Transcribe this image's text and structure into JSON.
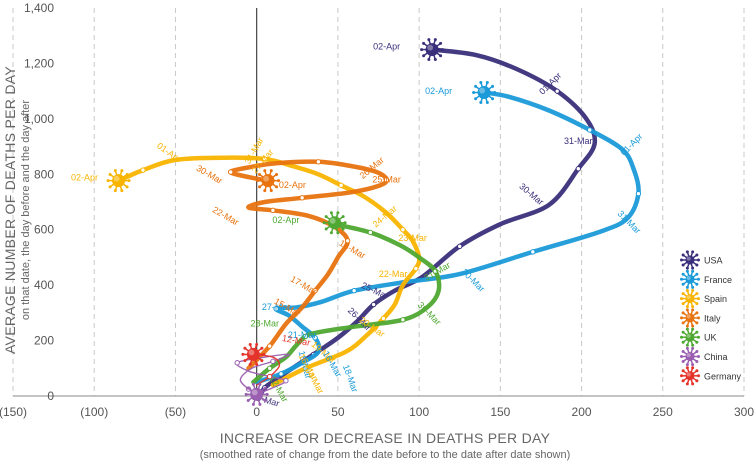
{
  "chart_data": {
    "type": "line",
    "xlabel": "INCREASE OR DECREASE IN DEATHS PER DAY",
    "xlabel_sub": "(smoothed rate of change from the date before to the date after date shown)",
    "ylabel": "AVERAGE NUMBER OF DEATHS PER DAY",
    "ylabel_sub": "on that date, the day before and the day after",
    "xlim": [
      -150,
      300
    ],
    "ylim": [
      0,
      1400
    ],
    "x_ticks": [
      {
        "v": -150,
        "label": "(150)"
      },
      {
        "v": -100,
        "label": "(100)"
      },
      {
        "v": -50,
        "label": "(50)"
      },
      {
        "v": 0,
        "label": "0"
      },
      {
        "v": 50,
        "label": "50"
      },
      {
        "v": 100,
        "label": "100"
      },
      {
        "v": 150,
        "label": "150"
      },
      {
        "v": 200,
        "label": "200"
      },
      {
        "v": 250,
        "label": "250"
      },
      {
        "v": 300,
        "label": "300"
      }
    ],
    "y_ticks": [
      {
        "v": 0,
        "label": "0"
      },
      {
        "v": 200,
        "label": "200"
      },
      {
        "v": 400,
        "label": "400"
      },
      {
        "v": 600,
        "label": "600"
      },
      {
        "v": 800,
        "label": "800"
      },
      {
        "v": 1000,
        "label": "1,000"
      },
      {
        "v": 1200,
        "label": "1,200"
      },
      {
        "v": 1400,
        "label": "1,400"
      }
    ],
    "grid": "vertical dashed",
    "legend_position": "right",
    "series": [
      {
        "name": "USA",
        "color": "#3a2f7a",
        "points": [
          [
            2,
            0
          ],
          [
            5,
            30
          ],
          [
            12,
            60
          ],
          [
            22,
            100
          ],
          [
            35,
            150
          ],
          [
            50,
            210
          ],
          [
            62,
            270
          ],
          [
            72,
            330
          ],
          [
            85,
            380
          ],
          [
            102,
            430
          ],
          [
            125,
            540
          ],
          [
            150,
            620
          ],
          [
            180,
            690
          ],
          [
            198,
            820
          ],
          [
            208,
            910
          ],
          [
            203,
            1000
          ],
          [
            185,
            1100
          ],
          [
            160,
            1180
          ],
          [
            135,
            1230
          ],
          [
            108,
            1250
          ]
        ],
        "labels": [
          {
            "text": "09-Mar",
            "x": 5,
            "y": -25,
            "angle": 15
          },
          {
            "text": "25-Mar",
            "x": 72,
            "y": 370,
            "angle": 25
          },
          {
            "text": "26-Mar",
            "x": 62,
            "y": 270,
            "angle": 45
          },
          {
            "text": "30-Mar",
            "x": 168,
            "y": 720,
            "angle": 40
          },
          {
            "text": "31-Mar",
            "x": 198,
            "y": 910,
            "angle": 0
          },
          {
            "text": "01-Apr",
            "x": 182,
            "y": 1120,
            "angle": -45
          },
          {
            "text": "02-Apr",
            "x": 80,
            "y": 1250,
            "angle": 0
          }
        ]
      },
      {
        "name": "France",
        "color": "#1a9ad8",
        "points": [
          [
            0,
            50
          ],
          [
            15,
            80
          ],
          [
            28,
            120
          ],
          [
            38,
            160
          ],
          [
            36,
            210
          ],
          [
            28,
            250
          ],
          [
            20,
            290
          ],
          [
            12,
            315
          ],
          [
            25,
            320
          ],
          [
            40,
            340
          ],
          [
            60,
            380
          ],
          [
            90,
            410
          ],
          [
            125,
            440
          ],
          [
            170,
            520
          ],
          [
            210,
            590
          ],
          [
            228,
            640
          ],
          [
            235,
            730
          ],
          [
            232,
            820
          ],
          [
            225,
            890
          ],
          [
            205,
            960
          ],
          [
            180,
            1030
          ],
          [
            155,
            1080
          ],
          [
            140,
            1095
          ]
        ],
        "labels": [
          {
            "text": "18-Mar",
            "x": 28,
            "y": 110,
            "angle": 75
          },
          {
            "text": "21-Mar",
            "x": 28,
            "y": 210,
            "angle": 0
          },
          {
            "text": "27-Mar",
            "x": 12,
            "y": 310,
            "angle": 0
          },
          {
            "text": "30-Mar",
            "x": 132,
            "y": 410,
            "angle": 45
          },
          {
            "text": "31-Mar",
            "x": 228,
            "y": 620,
            "angle": 45
          },
          {
            "text": "01-Apr",
            "x": 232,
            "y": 900,
            "angle": -45
          },
          {
            "text": "02-Apr",
            "x": 112,
            "y": 1090,
            "angle": 0
          }
        ]
      },
      {
        "name": "Spain",
        "color": "#f8b400",
        "points": [
          [
            10,
            40
          ],
          [
            30,
            100
          ],
          [
            55,
            160
          ],
          [
            68,
            220
          ],
          [
            78,
            280
          ],
          [
            85,
            330
          ],
          [
            90,
            400
          ],
          [
            98,
            460
          ],
          [
            100,
            500
          ],
          [
            96,
            560
          ],
          [
            90,
            600
          ],
          [
            80,
            660
          ],
          [
            66,
            720
          ],
          [
            52,
            760
          ],
          [
            38,
            800
          ],
          [
            22,
            830
          ],
          [
            5,
            855
          ],
          [
            -20,
            860
          ],
          [
            -50,
            852
          ],
          [
            -70,
            815
          ],
          [
            -80,
            790
          ],
          [
            -85,
            777
          ]
        ],
        "labels": [
          {
            "text": "16-Mar",
            "x": 30,
            "y": 100,
            "angle": 60
          },
          {
            "text": "20-Mar",
            "x": 70,
            "y": 240,
            "angle": 35
          },
          {
            "text": "22-Mar",
            "x": 84,
            "y": 430,
            "angle": 0
          },
          {
            "text": "23-Mar",
            "x": 96,
            "y": 560,
            "angle": 0
          },
          {
            "text": "24-Mar",
            "x": 80,
            "y": 640,
            "angle": -40
          },
          {
            "text": "27-Mar",
            "x": 5,
            "y": 840,
            "angle": -50
          },
          {
            "text": "31-Mar",
            "x": 0,
            "y": 880,
            "angle": -60
          },
          {
            "text": "01-Apr",
            "x": -55,
            "y": 870,
            "angle": 35
          },
          {
            "text": "02-Apr",
            "x": -106,
            "y": 777,
            "angle": 0
          }
        ]
      },
      {
        "name": "Italy",
        "color": "#e8730f",
        "points": [
          [
            -5,
            100
          ],
          [
            8,
            180
          ],
          [
            18,
            260
          ],
          [
            28,
            320
          ],
          [
            36,
            380
          ],
          [
            44,
            440
          ],
          [
            50,
            500
          ],
          [
            56,
            560
          ],
          [
            48,
            610
          ],
          [
            32,
            650
          ],
          [
            10,
            670
          ],
          [
            -5,
            680
          ],
          [
            5,
            700
          ],
          [
            28,
            715
          ],
          [
            58,
            735
          ],
          [
            75,
            758
          ],
          [
            80,
            780
          ],
          [
            74,
            808
          ],
          [
            58,
            830
          ],
          [
            38,
            845
          ],
          [
            12,
            840
          ],
          [
            -5,
            825
          ],
          [
            -16,
            808
          ],
          [
            -5,
            790
          ],
          [
            7,
            777
          ]
        ],
        "labels": [
          {
            "text": "15-Mar",
            "x": 18,
            "y": 310,
            "angle": 30
          },
          {
            "text": "17-Mar",
            "x": 28,
            "y": 390,
            "angle": 30
          },
          {
            "text": "18-Mar",
            "x": 58,
            "y": 520,
            "angle": 30
          },
          {
            "text": "22-Mar",
            "x": -20,
            "y": 640,
            "angle": 30
          },
          {
            "text": "25-Mar",
            "x": 80,
            "y": 770,
            "angle": 0
          },
          {
            "text": "26-Mar",
            "x": 72,
            "y": 815,
            "angle": -40
          },
          {
            "text": "30-Mar",
            "x": -30,
            "y": 790,
            "angle": 30
          },
          {
            "text": "02-Apr",
            "x": 22,
            "y": 750,
            "angle": 0
          }
        ]
      },
      {
        "name": "UK",
        "color": "#4fa832",
        "points": [
          [
            -2,
            50
          ],
          [
            8,
            100
          ],
          [
            18,
            140
          ],
          [
            24,
            180
          ],
          [
            30,
            215
          ],
          [
            38,
            230
          ],
          [
            60,
            250
          ],
          [
            90,
            275
          ],
          [
            105,
            320
          ],
          [
            112,
            380
          ],
          [
            110,
            450
          ],
          [
            100,
            500
          ],
          [
            88,
            545
          ],
          [
            70,
            590
          ],
          [
            50,
            618
          ],
          [
            48,
            625
          ]
        ],
        "labels": [
          {
            "text": "28-Mar",
            "x": 5,
            "y": 250,
            "angle": 0
          },
          {
            "text": "30-Mar",
            "x": 105,
            "y": 290,
            "angle": 45
          },
          {
            "text": "31-Mar",
            "x": 112,
            "y": 440,
            "angle": -30
          },
          {
            "text": "02-Apr",
            "x": 18,
            "y": 625,
            "angle": 0
          }
        ]
      },
      {
        "name": "China",
        "color": "#9a5fb0",
        "points": [
          [
            0,
            6
          ],
          [
            -5,
            25
          ],
          [
            -10,
            60
          ],
          [
            -3,
            100
          ],
          [
            10,
            125
          ],
          [
            20,
            150
          ],
          [
            5,
            140
          ],
          [
            -12,
            120
          ],
          [
            -5,
            90
          ],
          [
            8,
            70
          ],
          [
            18,
            55
          ],
          [
            10,
            30
          ],
          [
            0,
            6
          ]
        ],
        "labels": []
      },
      {
        "name": "Germany",
        "color": "#e4332a",
        "points": [
          [
            0,
            40
          ],
          [
            8,
            70
          ],
          [
            14,
            110
          ],
          [
            10,
            140
          ],
          [
            -2,
            150
          ]
        ],
        "labels": [
          {
            "text": "12-Mar",
            "x": 24,
            "y": 190,
            "angle": 10
          }
        ]
      }
    ],
    "extra_labels": [
      {
        "text": "19-Mar",
        "x": 40,
        "y": 150,
        "angle": 40,
        "color": "#f8b400"
      },
      {
        "text": "16-Mar",
        "x": 45,
        "y": 110,
        "angle": 60,
        "color": "#1a9ad8"
      },
      {
        "text": "18-Mar",
        "x": 56,
        "y": 60,
        "angle": 70,
        "color": "#1a9ad8"
      },
      {
        "text": "04-Mar",
        "x": 34,
        "y": 50,
        "angle": 60,
        "color": "#f8b400"
      },
      {
        "text": "12-Mar",
        "x": 12,
        "y": 20,
        "angle": 60,
        "color": "#4fa832"
      }
    ],
    "endpoints": [
      {
        "series": "USA",
        "x": 108,
        "y": 1250
      },
      {
        "series": "France",
        "x": 140,
        "y": 1095
      },
      {
        "series": "Spain",
        "x": -85,
        "y": 777
      },
      {
        "series": "Italy",
        "x": 7,
        "y": 777
      },
      {
        "series": "UK",
        "x": 48,
        "y": 625
      },
      {
        "series": "China",
        "x": 0,
        "y": 6
      },
      {
        "series": "Germany",
        "x": -2,
        "y": 150
      }
    ]
  }
}
